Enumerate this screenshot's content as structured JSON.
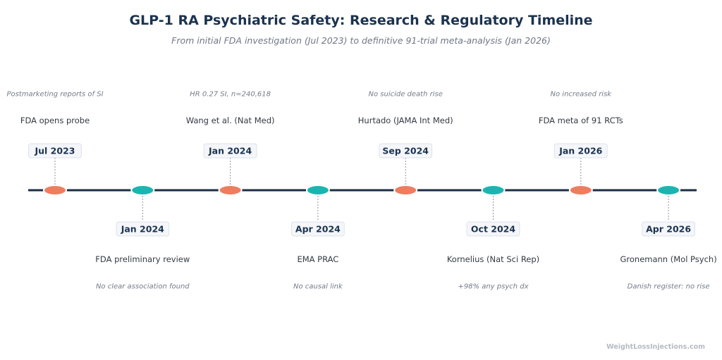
{
  "title": "GLP-1 RA Psychiatric Safety: Research & Regulatory Timeline",
  "subtitle": "From initial FDA investigation (Jul 2023) to definitive 91-trial meta-analysis (Jan 2026)",
  "watermark": "WeightLossInjections.com",
  "colors": {
    "axis": "#1b2e45",
    "regulatory": "#ee7d5f",
    "research": "#1bb5b0",
    "date_text": "#1b3350",
    "date_box_fill": "#f4f6fa",
    "date_box_stroke": "#dde2ec",
    "label_text": "#333a44",
    "note_text": "#737b8a",
    "connector": "#8d939c"
  },
  "events": [
    {
      "date": "Jul 2023",
      "label": "FDA opens probe",
      "note": "Postmarketing reports of SI",
      "side": "above",
      "color": "regulatory"
    },
    {
      "date": "Jan 2024",
      "label": "FDA preliminary review",
      "note": "No clear association found",
      "side": "below",
      "color": "research"
    },
    {
      "date": "Jan 2024",
      "label": "Wang et al. (Nat Med)",
      "note": "HR 0.27 SI, n=240,618",
      "side": "above",
      "color": "regulatory"
    },
    {
      "date": "Apr 2024",
      "label": "EMA PRAC",
      "note": "No causal link",
      "side": "below",
      "color": "research"
    },
    {
      "date": "Sep 2024",
      "label": "Hurtado (JAMA Int Med)",
      "note": "No suicide death rise",
      "side": "above",
      "color": "regulatory"
    },
    {
      "date": "Oct 2024",
      "label": "Kornelius (Nat Sci Rep)",
      "note": "+98% any psych dx",
      "side": "below",
      "color": "research"
    },
    {
      "date": "Jan 2026",
      "label": "FDA meta of 91 RCTs",
      "note": "No increased risk",
      "side": "above",
      "color": "regulatory"
    },
    {
      "date": "Apr 2026",
      "label": "Gronemann (Mol Psych)",
      "note": "Danish register: no rise",
      "side": "below",
      "color": "research"
    }
  ]
}
